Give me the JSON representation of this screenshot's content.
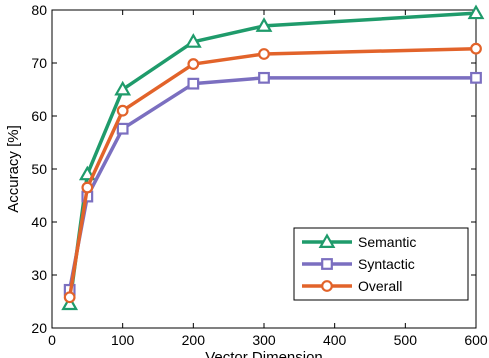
{
  "chart_data": {
    "type": "line",
    "xlabel": "Vector Dimension",
    "ylabel": "Accuracy [%]",
    "xlim": [
      0,
      600
    ],
    "ylim": [
      20,
      80
    ],
    "xticks": [
      0,
      100,
      200,
      300,
      400,
      500,
      600
    ],
    "yticks": [
      20,
      30,
      40,
      50,
      60,
      70,
      80
    ],
    "xtick_labels": [
      "0",
      "100",
      "200",
      "300",
      "400",
      "500",
      "600"
    ],
    "ytick_labels": [
      "20",
      "30",
      "40",
      "50",
      "60",
      "70",
      "80"
    ],
    "grid": false,
    "legend_position": "bottom-right",
    "x": [
      25,
      50,
      100,
      200,
      300,
      600
    ],
    "series": [
      {
        "name": "Semantic",
        "color": "#1f9b6b",
        "marker": "triangle",
        "values": [
          24.5,
          49,
          65,
          74,
          77,
          79.4
        ]
      },
      {
        "name": "Syntactic",
        "color": "#7b6fc0",
        "marker": "square",
        "values": [
          27.2,
          44.8,
          57.6,
          66.1,
          67.2,
          67.2
        ]
      },
      {
        "name": "Overall",
        "color": "#e2632a",
        "marker": "circle",
        "values": [
          25.8,
          46.5,
          61,
          69.8,
          71.7,
          72.7
        ]
      }
    ]
  }
}
